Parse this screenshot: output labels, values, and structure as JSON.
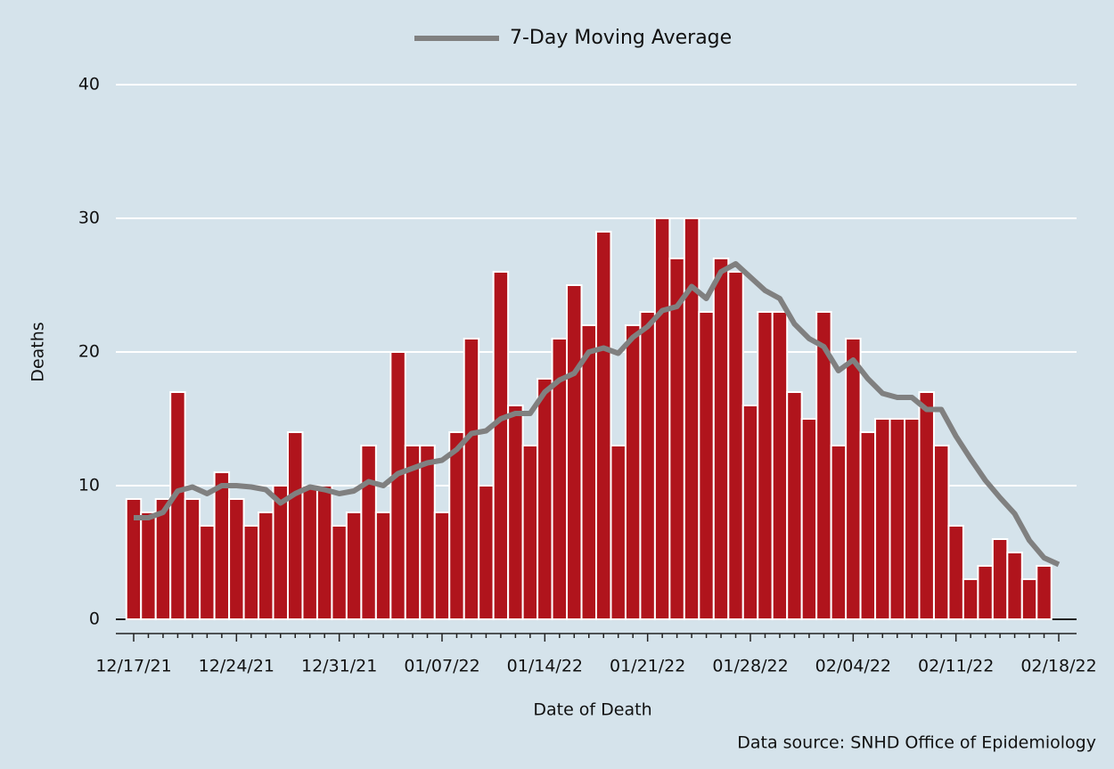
{
  "chart_data": {
    "type": "bar",
    "x_label": "Date of Death",
    "y_label": "Deaths",
    "source": "Data source: SNHD Office of Epidemiology",
    "categories": [
      "12/17/21",
      null,
      null,
      null,
      null,
      null,
      null,
      "12/24/21",
      null,
      null,
      null,
      null,
      null,
      null,
      "12/31/21",
      null,
      null,
      null,
      null,
      null,
      null,
      "01/07/22",
      null,
      null,
      null,
      null,
      null,
      null,
      "01/14/22",
      null,
      null,
      null,
      null,
      null,
      null,
      "01/21/22",
      null,
      null,
      null,
      null,
      null,
      null,
      "01/28/22",
      null,
      null,
      null,
      null,
      null,
      null,
      "02/04/22",
      null,
      null,
      null,
      null,
      null,
      null,
      "02/11/22",
      null,
      null,
      null,
      null,
      null,
      null,
      "02/18/22"
    ],
    "series": [
      {
        "type": "bar",
        "color": "#b0141c",
        "values": [
          9,
          8,
          9,
          17,
          9,
          7,
          11,
          9,
          7,
          8,
          10,
          14,
          10,
          10,
          7,
          8,
          13,
          8,
          20,
          13,
          13,
          8,
          14,
          21,
          10,
          26,
          16,
          13,
          18,
          21,
          25,
          22,
          29,
          13,
          22,
          23,
          30,
          27,
          30,
          23,
          27,
          26,
          16,
          23,
          23,
          17,
          15,
          23,
          13,
          21,
          14,
          15,
          15,
          15,
          17,
          13,
          7,
          3,
          4,
          6,
          5,
          3,
          4,
          0
        ]
      },
      {
        "type": "line",
        "name": "7-Day Moving Average",
        "color": "#808080",
        "values": [
          7.6,
          7.6,
          8.0,
          9.6,
          9.9,
          9.4,
          10.0,
          10.0,
          9.9,
          9.7,
          8.7,
          9.4,
          9.9,
          9.7,
          9.4,
          9.6,
          10.3,
          10.0,
          10.9,
          11.3,
          11.7,
          11.9,
          12.7,
          13.9,
          14.1,
          15.0,
          15.4,
          15.4,
          17.0,
          17.9,
          18.4,
          20.0,
          20.3,
          19.9,
          21.1,
          21.9,
          23.1,
          23.4,
          24.9,
          24.0,
          26.0,
          26.6,
          25.6,
          24.6,
          24.0,
          22.1,
          21.0,
          20.4,
          18.6,
          19.4,
          18.0,
          16.9,
          16.6,
          16.6,
          15.7,
          15.7,
          13.7,
          12.0,
          10.4,
          9.1,
          7.9,
          5.9,
          4.6,
          4.1
        ]
      }
    ],
    "ylim": [
      0,
      40
    ],
    "yticks": [
      0,
      10,
      20,
      30,
      40
    ],
    "grid": true,
    "legend": "top"
  }
}
